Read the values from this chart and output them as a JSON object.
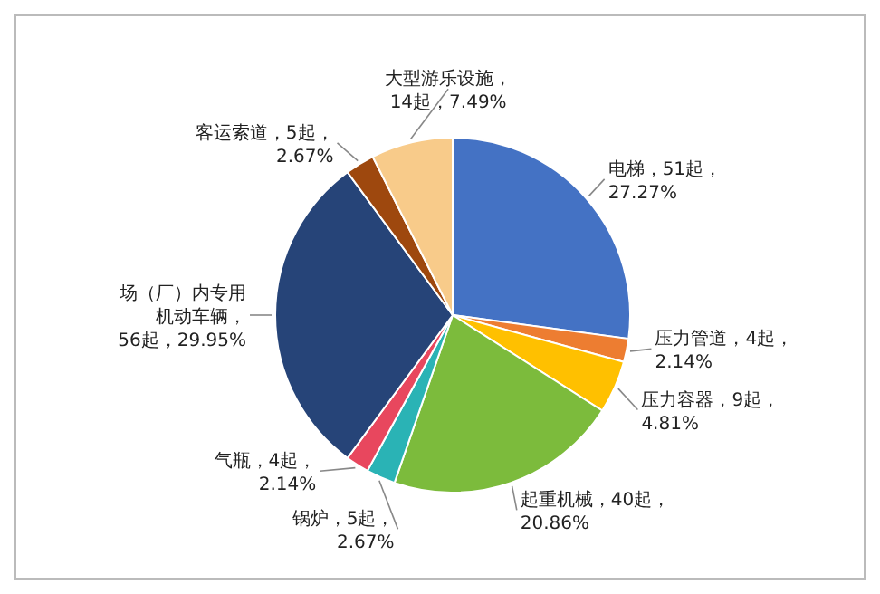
{
  "chart_data": {
    "type": "pie",
    "categories": [
      "电梯",
      "压力管道",
      "压力容器",
      "起重机械",
      "锅炉",
      "气瓶",
      "场（厂）内专用机动车辆",
      "客运索道",
      "大型游乐设施"
    ],
    "values": [
      51,
      4,
      9,
      40,
      5,
      4,
      56,
      5,
      14
    ],
    "value_labels": [
      "，51起，27.27%",
      "，4起，2.14%",
      "，9起，4.81%",
      "，40起，20.86%",
      "，5起，2.67%",
      "，4起，2.14%",
      "，56起，29.95%",
      "，5起，2.67%",
      "，14起，7.49%"
    ],
    "colors": [
      "#4472c4",
      "#ed7d31",
      "#ffc000",
      "#7cbb3c",
      "#2ab3b5",
      "#e8475e",
      "#264478",
      "#9e480e",
      "#f8cb8a"
    ],
    "legend": false
  }
}
